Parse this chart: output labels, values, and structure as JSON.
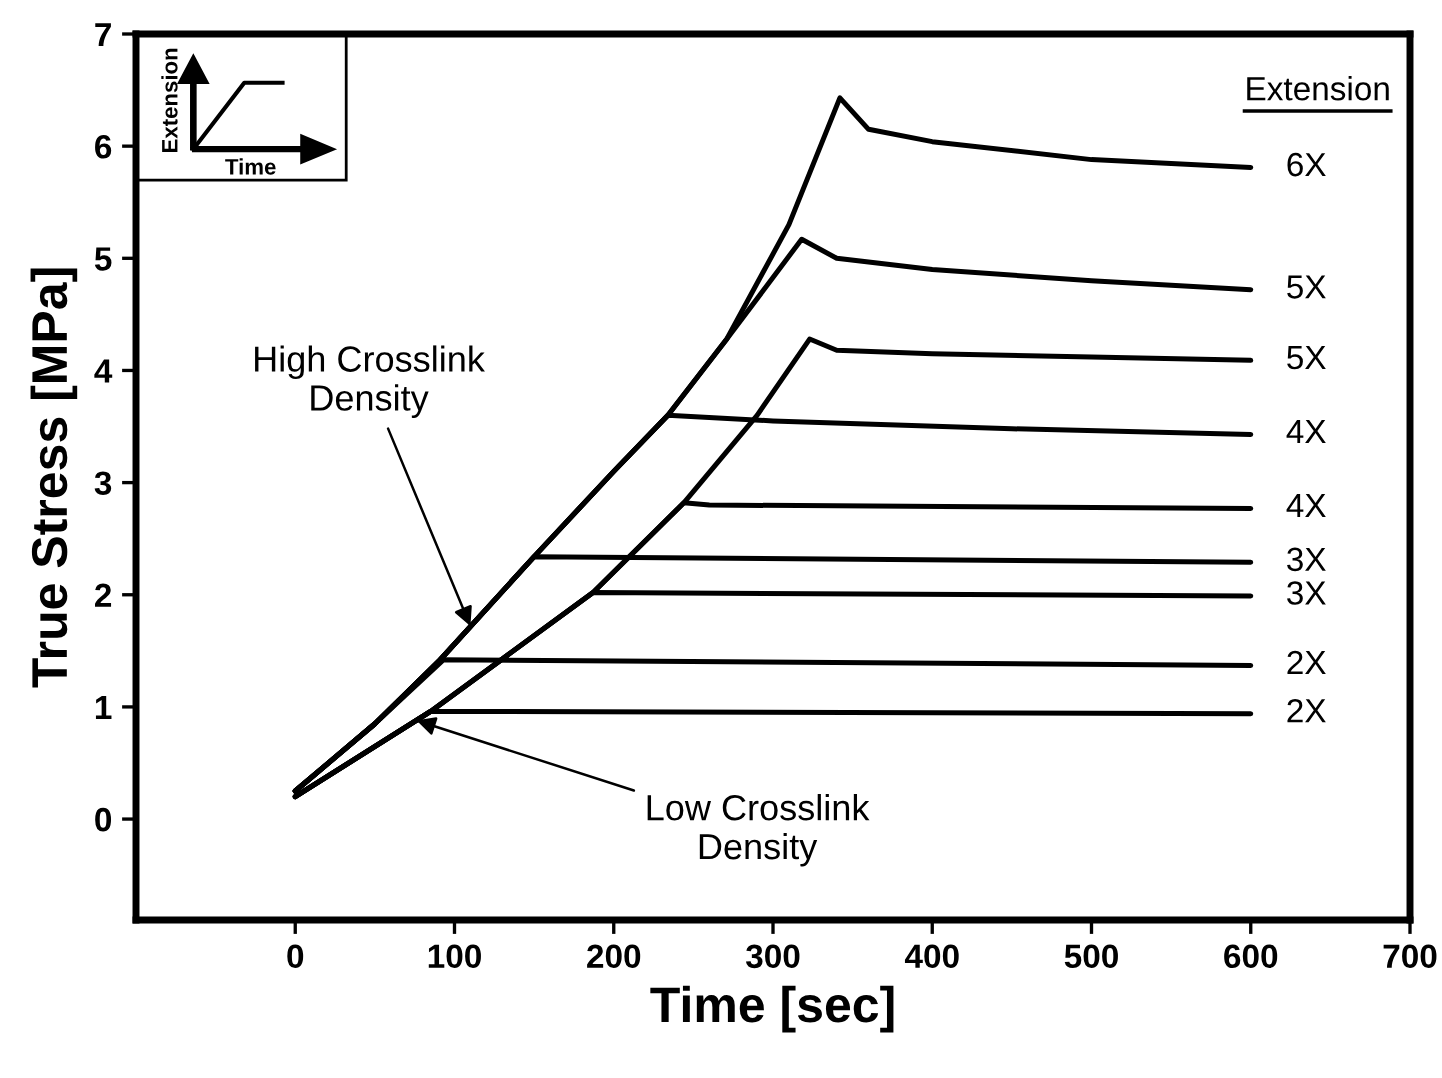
{
  "chart_data": {
    "type": "line",
    "xlabel": "Time [sec]",
    "ylabel": "True Stress [MPa]",
    "legend_title": "Extension",
    "xlim": [
      -100,
      700
    ],
    "ylim": [
      -0.9,
      7
    ],
    "xticks": [
      0,
      100,
      200,
      300,
      400,
      500,
      600,
      700
    ],
    "yticks": [
      0,
      1,
      2,
      3,
      4,
      5,
      6,
      7
    ],
    "grid": false,
    "legend": false,
    "marker": "none",
    "line_style": "solid",
    "series": [
      {
        "name": "6X",
        "color": "#000000",
        "x": [
          0,
          50,
          91,
          150,
          200,
          234,
          271,
          310,
          342,
          360,
          400,
          500,
          600
        ],
        "values": [
          0.25,
          0.85,
          1.42,
          2.34,
          3.1,
          3.6,
          4.28,
          5.3,
          6.43,
          6.15,
          6.04,
          5.88,
          5.81
        ]
      },
      {
        "name": "5X",
        "color": "#000000",
        "x": [
          0,
          50,
          91,
          150,
          200,
          234,
          271,
          318,
          340,
          400,
          500,
          600
        ],
        "values": [
          0.25,
          0.85,
          1.42,
          2.34,
          3.1,
          3.6,
          4.28,
          5.17,
          5.0,
          4.9,
          4.8,
          4.72
        ]
      },
      {
        "name": "5X",
        "color": "#000000",
        "x": [
          0,
          85,
          187,
          244,
          290,
          323,
          340,
          400,
          500,
          600
        ],
        "values": [
          0.2,
          0.96,
          2.02,
          2.82,
          3.6,
          4.28,
          4.18,
          4.15,
          4.12,
          4.09
        ]
      },
      {
        "name": "4X",
        "color": "#000000",
        "x": [
          0,
          50,
          91,
          150,
          200,
          234,
          300,
          450,
          600
        ],
        "values": [
          0.25,
          0.85,
          1.42,
          2.34,
          3.1,
          3.6,
          3.55,
          3.48,
          3.43
        ]
      },
      {
        "name": "4X",
        "color": "#000000",
        "x": [
          0,
          85,
          187,
          244,
          260,
          600
        ],
        "values": [
          0.2,
          0.96,
          2.02,
          2.82,
          2.8,
          2.77
        ]
      },
      {
        "name": "3X",
        "color": "#000000",
        "x": [
          0,
          50,
          91,
          150,
          600
        ],
        "values": [
          0.25,
          0.85,
          1.42,
          2.34,
          2.29
        ]
      },
      {
        "name": "3X",
        "color": "#000000",
        "x": [
          0,
          85,
          187,
          600
        ],
        "values": [
          0.2,
          0.96,
          2.02,
          1.99
        ]
      },
      {
        "name": "2X",
        "color": "#000000",
        "x": [
          0,
          50,
          93,
          600
        ],
        "values": [
          0.25,
          0.85,
          1.42,
          1.37
        ]
      },
      {
        "name": "2X",
        "color": "#000000",
        "x": [
          0,
          85,
          600
        ],
        "values": [
          0.2,
          0.96,
          0.94
        ]
      }
    ],
    "annotations": [
      {
        "text": "High Crosslink\nDensity",
        "x": 110,
        "y": 1.72
      },
      {
        "text": "Low Crosslink\nDensity",
        "x": 76,
        "y": 0.88
      },
      "Extension",
      "Time"
    ]
  }
}
